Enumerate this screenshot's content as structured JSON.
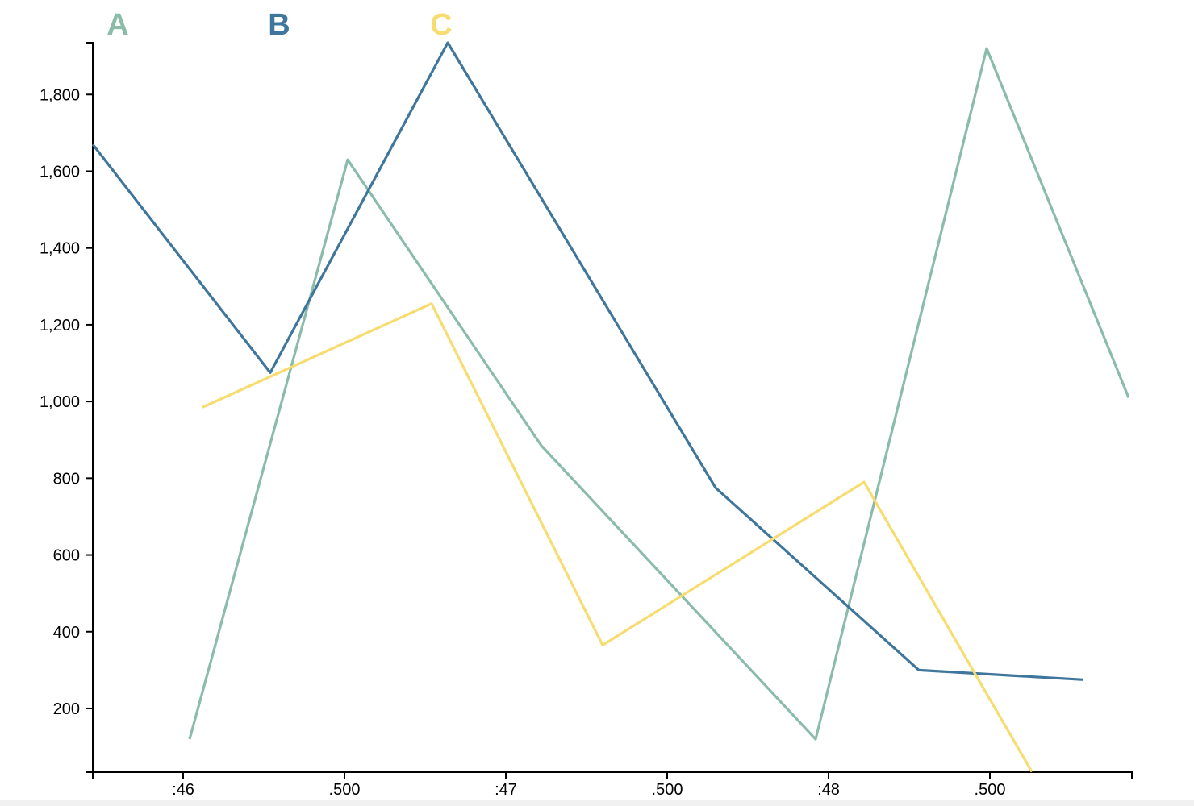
{
  "page": {
    "background_color": "#ffffff"
  },
  "legend": {
    "items": [
      {
        "label": "A",
        "color": "#8ABCA9"
      },
      {
        "label": "B",
        "color": "#3F769B"
      },
      {
        "label": "C",
        "color": "#F7DC6F"
      }
    ]
  },
  "chart_data": {
    "type": "line",
    "title": "",
    "xlabel": "",
    "ylabel": "",
    "grid": false,
    "legend_position": "top-left",
    "x_axis": {
      "unit": "time (seconds : milliseconds)",
      "domain": [
        45.72,
        48.94
      ],
      "ticks": [
        {
          "t": 46.0,
          "label": ":46"
        },
        {
          "t": 46.5,
          "label": ".500"
        },
        {
          "t": 47.0,
          "label": ":47"
        },
        {
          "t": 47.5,
          "label": ".500"
        },
        {
          "t": 48.0,
          "label": ":48"
        },
        {
          "t": 48.5,
          "label": ".500"
        }
      ]
    },
    "y_axis": {
      "domain": [
        34,
        1935
      ],
      "ticks": [
        {
          "v": 200,
          "label": "200"
        },
        {
          "v": 400,
          "label": "400"
        },
        {
          "v": 600,
          "label": "600"
        },
        {
          "v": 800,
          "label": "800"
        },
        {
          "v": 1000,
          "label": "1,000"
        },
        {
          "v": 1200,
          "label": "1,200"
        },
        {
          "v": 1400,
          "label": "1,400"
        },
        {
          "v": 1600,
          "label": "1,600"
        },
        {
          "v": 1800,
          "label": "1,800"
        }
      ]
    },
    "series": [
      {
        "name": "A",
        "color": "#8ABCA9",
        "points": [
          [
            46.02,
            120
          ],
          [
            46.51,
            1630
          ],
          [
            47.11,
            885
          ],
          [
            47.96,
            120
          ],
          [
            48.49,
            1920
          ],
          [
            48.93,
            1010
          ]
        ]
      },
      {
        "name": "B",
        "color": "#3F769B",
        "points": [
          [
            45.72,
            1670
          ],
          [
            46.27,
            1075
          ],
          [
            46.82,
            1935
          ],
          [
            47.65,
            775
          ],
          [
            48.28,
            300
          ],
          [
            48.79,
            275
          ]
        ]
      },
      {
        "name": "C",
        "color": "#F7DC6F",
        "points": [
          [
            46.06,
            985
          ],
          [
            46.77,
            1255
          ],
          [
            47.3,
            365
          ],
          [
            48.11,
            790
          ],
          [
            48.63,
            35
          ]
        ]
      }
    ],
    "style": {
      "axis_color": "#000000",
      "tick_label_color": "#000000",
      "line_width": 3.2,
      "axis_width": 2
    }
  }
}
